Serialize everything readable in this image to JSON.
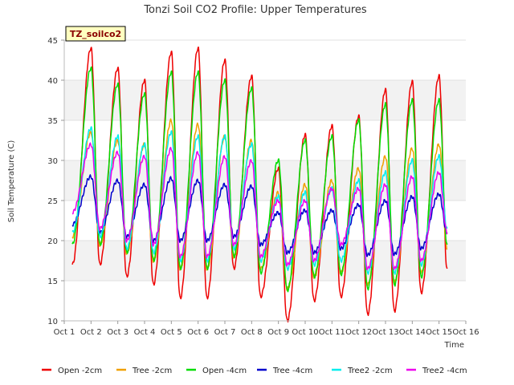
{
  "chart_data": {
    "type": "line",
    "title": "Tonzi Soil CO2 Profile: Upper Temperatures",
    "xlabel": "Time",
    "ylabel": "Soil Temperature (C)",
    "xlim": [
      1,
      16
    ],
    "ylim": [
      10,
      45
    ],
    "x_ticks": [
      "Oct 1",
      "Oct 2",
      "Oct 3",
      "Oct 4",
      "Oct 5",
      "Oct 6",
      "Oct 7",
      "Oct 8",
      "Oct 9",
      "Oct 10",
      "Oct 11",
      "Oct 12",
      "Oct 13",
      "Oct 14",
      "Oct 15",
      "Oct 16"
    ],
    "y_ticks": [
      10,
      15,
      20,
      25,
      30,
      35,
      40,
      45
    ],
    "grid": "horizontal bands",
    "legend_position": "bottom",
    "badge": "TZ_soilco2",
    "series_x_start": 1.3,
    "series_x_end": 15.3,
    "series": [
      {
        "name": "Open -2cm",
        "color": "#ee0000",
        "min": [
          17.0,
          17.0,
          15.5,
          14.5,
          12.8,
          12.8,
          16.5,
          13.0,
          10.0,
          12.5,
          13.0,
          10.8,
          11.2,
          13.5,
          16.5
        ],
        "max": [
          44.0,
          41.5,
          40.0,
          43.5,
          44.0,
          42.5,
          40.5,
          29.0,
          33.2,
          34.3,
          35.5,
          38.8,
          39.8,
          40.5
        ]
      },
      {
        "name": "Tree -2cm",
        "color": "#f0a000",
        "min": [
          20.5,
          19.5,
          18.5,
          17.5,
          16.5,
          16.5,
          18.0,
          16.5,
          14.0,
          15.5,
          16.0,
          14.5,
          14.8,
          16.0,
          19.0
        ],
        "max": [
          33.5,
          32.5,
          32.0,
          35.0,
          34.5,
          33.0,
          32.5,
          26.0,
          27.0,
          27.5,
          29.0,
          30.5,
          31.5,
          32.0
        ]
      },
      {
        "name": "Open -4cm",
        "color": "#00dd00",
        "min": [
          19.5,
          19.5,
          18.5,
          17.5,
          16.5,
          16.5,
          18.0,
          16.0,
          13.8,
          15.5,
          15.8,
          14.0,
          14.5,
          15.5,
          19.5
        ],
        "max": [
          41.5,
          39.5,
          38.3,
          41.0,
          41.0,
          40.0,
          39.0,
          30.0,
          32.5,
          33.0,
          35.0,
          37.0,
          37.5,
          37.5
        ]
      },
      {
        "name": "Tree -4cm",
        "color": "#0000cc",
        "min": [
          22.0,
          21.0,
          20.5,
          20.0,
          20.0,
          20.0,
          20.5,
          19.5,
          18.5,
          18.5,
          19.0,
          18.2,
          18.3,
          19.0,
          21.0
        ],
        "max": [
          28.0,
          27.5,
          27.0,
          27.8,
          27.5,
          27.0,
          26.8,
          23.5,
          23.8,
          23.8,
          24.5,
          25.0,
          25.5,
          25.8
        ]
      },
      {
        "name": "Tree2 -2cm",
        "color": "#00eeee",
        "min": [
          21.0,
          20.5,
          19.0,
          18.5,
          17.5,
          17.5,
          19.0,
          17.5,
          16.5,
          17.0,
          17.5,
          16.0,
          16.0,
          17.0,
          21.5
        ],
        "max": [
          34.0,
          33.0,
          32.0,
          33.5,
          33.0,
          33.0,
          32.0,
          25.5,
          26.0,
          26.5,
          27.5,
          28.5,
          30.0,
          30.5
        ]
      },
      {
        "name": "Tree2 -4cm",
        "color": "#ee00ee",
        "min": [
          23.5,
          21.5,
          20.0,
          19.5,
          18.0,
          18.0,
          19.5,
          18.0,
          17.0,
          17.5,
          19.5,
          16.5,
          16.5,
          17.5,
          21.0
        ],
        "max": [
          32.0,
          31.0,
          30.5,
          31.5,
          31.0,
          30.5,
          30.0,
          25.0,
          25.0,
          26.5,
          26.5,
          27.0,
          28.0,
          28.5
        ]
      }
    ]
  }
}
